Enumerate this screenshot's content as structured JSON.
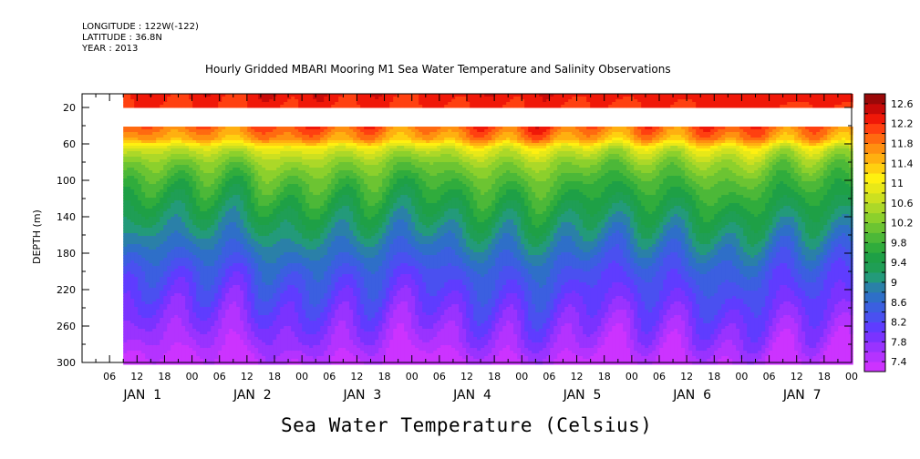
{
  "header": {
    "longitude": "LONGITUDE : 122W(-122)",
    "latitude": "LATITUDE : 36.8N",
    "year": "YEAR : 2013"
  },
  "chart_data": {
    "type": "heatmap",
    "title": "Hourly Gridded MBARI Mooring M1 Sea Water Temperature and Salinity Observations",
    "xlabel": "Sea Water Temperature (Celsius)",
    "ylabel": "DEPTH (m)",
    "ylim": [
      300,
      5
    ],
    "yticks": [
      20,
      60,
      100,
      140,
      180,
      220,
      260,
      300
    ],
    "x_hour_ticks": [
      "06",
      "12",
      "18",
      "00",
      "06",
      "12",
      "18",
      "00",
      "06",
      "12",
      "18",
      "00",
      "06",
      "12",
      "18",
      "00",
      "06",
      "12",
      "18",
      "00",
      "06",
      "12",
      "18",
      "00",
      "06",
      "12",
      "18",
      "00"
    ],
    "x_day_labels": [
      "JAN  1",
      "JAN  2",
      "JAN  3",
      "JAN  4",
      "JAN  5",
      "JAN  6",
      "JAN  7"
    ],
    "x_range_hours": [
      0,
      168
    ],
    "data_start_hour": 9,
    "missing_depth_band": [
      20,
      40
    ],
    "colorbar": {
      "levels": [
        7.4,
        7.6,
        7.8,
        8.0,
        8.2,
        8.4,
        8.6,
        8.8,
        9.0,
        9.2,
        9.4,
        9.6,
        9.8,
        10.0,
        10.2,
        10.4,
        10.6,
        10.8,
        11.0,
        11.2,
        11.4,
        11.6,
        11.8,
        12.0,
        12.2,
        12.4,
        12.6,
        12.8
      ],
      "labels": [
        "7.4",
        "7.8",
        "8.2",
        "8.6",
        "9",
        "9.4",
        "9.8",
        "10.2",
        "10.6",
        "11",
        "11.4",
        "11.8",
        "12.2",
        "12.6"
      ],
      "colors": [
        "#cc33ff",
        "#b433ff",
        "#9933ff",
        "#7a33ff",
        "#5f3cff",
        "#4a50f0",
        "#3b5fe0",
        "#2e6fc8",
        "#2a80a8",
        "#239a7a",
        "#1f9e55",
        "#1ea046",
        "#30ac3c",
        "#4cb838",
        "#6cc432",
        "#8cd02c",
        "#acd828",
        "#cce020",
        "#e8e818",
        "#fff010",
        "#ffd010",
        "#ffb010",
        "#ff9010",
        "#ff6a10",
        "#ff4010",
        "#f01808",
        "#c80a08",
        "#9a0808"
      ]
    },
    "profile": {
      "depths": [
        5,
        20,
        40,
        55,
        65,
        80,
        100,
        120,
        140,
        160,
        180,
        200,
        220,
        240,
        260,
        280,
        300
      ],
      "temps": [
        12.5,
        12.4,
        12.2,
        11.8,
        11.0,
        10.5,
        10.1,
        9.8,
        9.5,
        9.2,
        8.9,
        8.6,
        8.4,
        8.2,
        8.0,
        7.8,
        7.5
      ]
    }
  }
}
